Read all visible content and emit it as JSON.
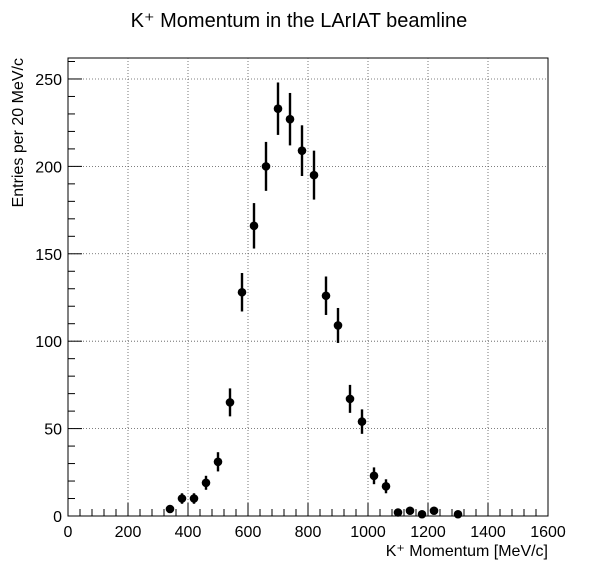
{
  "chart_data": {
    "type": "scatter",
    "title": "K⁺ Momentum in the LArIAT beamline",
    "xlabel": "K⁺ Momentum [MeV/c]",
    "ylabel": "Entries per 20 MeV/c",
    "xlim": [
      0,
      1600
    ],
    "ylim": [
      0,
      262
    ],
    "x_ticks": [
      0,
      200,
      400,
      600,
      800,
      1000,
      1200,
      1400,
      1600
    ],
    "y_ticks": [
      0,
      50,
      100,
      150,
      200,
      250
    ],
    "grid": true,
    "marker": "filled-circle",
    "x_error": 10,
    "series": [
      {
        "points": [
          {
            "x": 340,
            "y": 4,
            "err": 2
          },
          {
            "x": 380,
            "y": 10,
            "err": 3
          },
          {
            "x": 420,
            "y": 10,
            "err": 3
          },
          {
            "x": 460,
            "y": 19,
            "err": 4
          },
          {
            "x": 500,
            "y": 31,
            "err": 5.5
          },
          {
            "x": 540,
            "y": 65,
            "err": 8
          },
          {
            "x": 580,
            "y": 128,
            "err": 11
          },
          {
            "x": 620,
            "y": 166,
            "err": 13
          },
          {
            "x": 660,
            "y": 200,
            "err": 14
          },
          {
            "x": 700,
            "y": 233,
            "err": 15
          },
          {
            "x": 740,
            "y": 227,
            "err": 15
          },
          {
            "x": 780,
            "y": 209,
            "err": 14.5
          },
          {
            "x": 820,
            "y": 195,
            "err": 14
          },
          {
            "x": 860,
            "y": 126,
            "err": 11
          },
          {
            "x": 900,
            "y": 109,
            "err": 10
          },
          {
            "x": 940,
            "y": 67,
            "err": 8
          },
          {
            "x": 980,
            "y": 54,
            "err": 7
          },
          {
            "x": 1020,
            "y": 23,
            "err": 4.8
          },
          {
            "x": 1060,
            "y": 17,
            "err": 4
          },
          {
            "x": 1100,
            "y": 2,
            "err": 1.4
          },
          {
            "x": 1140,
            "y": 3,
            "err": 1.7
          },
          {
            "x": 1180,
            "y": 1,
            "err": 1
          },
          {
            "x": 1220,
            "y": 3,
            "err": 1.7
          },
          {
            "x": 1300,
            "y": 1,
            "err": 1
          }
        ]
      }
    ]
  }
}
